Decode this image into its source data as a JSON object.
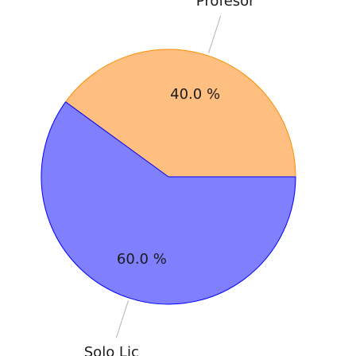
{
  "chart_data": {
    "type": "pie",
    "title": "",
    "slices": [
      {
        "label": "Profesor",
        "value": 40.0,
        "percent_label": "40.0 %",
        "color": "#ffbf80",
        "stroke": "#ff8c00"
      },
      {
        "label": "Solo Lic",
        "value": 60.0,
        "percent_label": "60.0 %",
        "color": "#8080ff",
        "stroke": "#0000ff"
      }
    ],
    "start_angle_deg": 0,
    "direction": "counterclockwise",
    "legend": "none"
  }
}
